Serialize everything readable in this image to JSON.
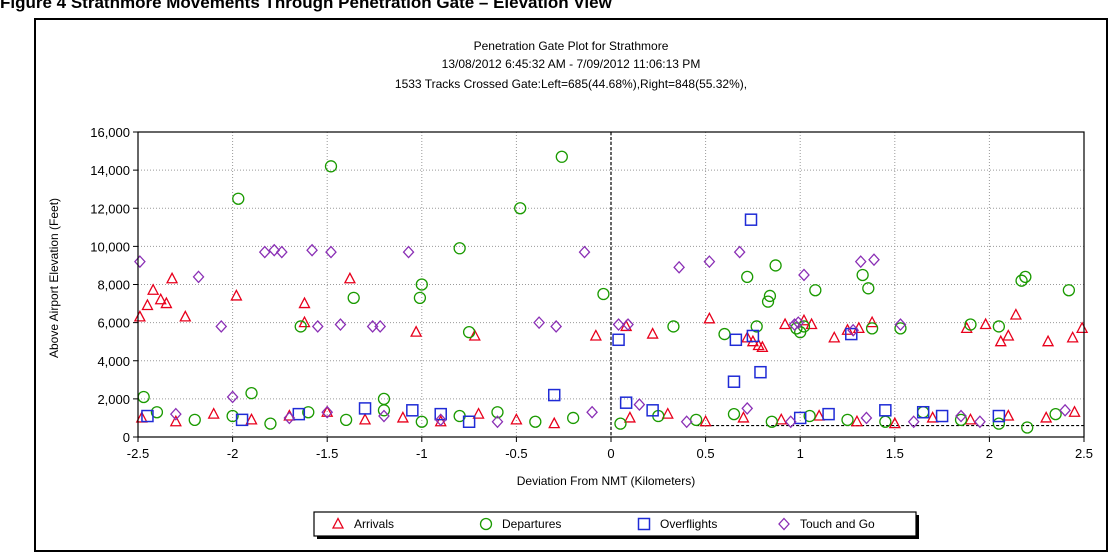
{
  "figure_caption": "Figure 4 Strathmore Movements Through Penetration Gate – Elevation View",
  "chart_data": {
    "type": "scatter",
    "title": "Penetration Gate Plot for Strathmore",
    "subtitle": "13/08/2012 6:45:32 AM - 7/09/2012 11:06:13 PM",
    "subtitle2": "1533 Tracks Crossed Gate:Left=685(44.68%),Right=848(55.32%),",
    "xlabel": "Deviation From NMT (Kilometers)",
    "ylabel": "Above Airport Elevation (Feet)",
    "xlim": [
      -2.5,
      2.5
    ],
    "ylim": [
      0,
      16000
    ],
    "xticks": [
      -2.5,
      -2,
      -1.5,
      -1,
      -0.5,
      0,
      0.5,
      1,
      1.5,
      2,
      2.5
    ],
    "xtick_labels": [
      "-2.5",
      "-2",
      "-1.5",
      "-1",
      "-0.5",
      "0",
      "0.5",
      "1",
      "1.5",
      "2",
      "2.5"
    ],
    "yticks": [
      0,
      2000,
      4000,
      6000,
      8000,
      10000,
      12000,
      14000,
      16000
    ],
    "ytick_labels": [
      "0",
      "2,000",
      "4,000",
      "6,000",
      "8,000",
      "10,000",
      "12,000",
      "14,000",
      "16,000"
    ],
    "grid": "dotted",
    "reference_lines": {
      "vertical_x": 0,
      "horizontal_y": 600
    },
    "legend_position": "bottom",
    "series": [
      {
        "name": "Arrivals",
        "marker": "triangle",
        "color": "#e8001c",
        "points": [
          [
            -2.49,
            6300
          ],
          [
            -2.45,
            6900
          ],
          [
            -2.42,
            7700
          ],
          [
            -2.38,
            7200
          ],
          [
            -2.35,
            7000
          ],
          [
            -2.32,
            8300
          ],
          [
            -2.25,
            6300
          ],
          [
            -1.98,
            7400
          ],
          [
            -1.62,
            7000
          ],
          [
            -1.62,
            6000
          ],
          [
            -1.38,
            8300
          ],
          [
            -1.03,
            5500
          ],
          [
            -0.72,
            5300
          ],
          [
            -0.08,
            5300
          ],
          [
            0.08,
            5800
          ],
          [
            0.22,
            5400
          ],
          [
            0.52,
            6200
          ],
          [
            0.72,
            5200
          ],
          [
            0.75,
            5000
          ],
          [
            0.78,
            4800
          ],
          [
            0.8,
            4700
          ],
          [
            0.92,
            5900
          ],
          [
            1.02,
            6100
          ],
          [
            1.06,
            5900
          ],
          [
            1.18,
            5200
          ],
          [
            1.25,
            5600
          ],
          [
            1.31,
            5700
          ],
          [
            1.38,
            6000
          ],
          [
            1.88,
            5700
          ],
          [
            1.98,
            5900
          ],
          [
            2.06,
            5000
          ],
          [
            2.1,
            5300
          ],
          [
            2.14,
            6400
          ],
          [
            2.31,
            5000
          ],
          [
            2.44,
            5200
          ],
          [
            2.49,
            5700
          ],
          [
            -2.48,
            1000
          ],
          [
            -2.3,
            800
          ],
          [
            -2.1,
            1200
          ],
          [
            -1.9,
            900
          ],
          [
            -1.7,
            1100
          ],
          [
            -1.5,
            1300
          ],
          [
            -1.3,
            900
          ],
          [
            -1.1,
            1000
          ],
          [
            -0.9,
            800
          ],
          [
            -0.7,
            1200
          ],
          [
            -0.5,
            900
          ],
          [
            -0.3,
            700
          ],
          [
            0.1,
            1000
          ],
          [
            0.3,
            1200
          ],
          [
            0.5,
            800
          ],
          [
            0.7,
            1000
          ],
          [
            0.9,
            900
          ],
          [
            1.1,
            1100
          ],
          [
            1.3,
            800
          ],
          [
            1.5,
            700
          ],
          [
            1.7,
            1000
          ],
          [
            1.9,
            900
          ],
          [
            2.1,
            1100
          ],
          [
            2.3,
            1000
          ],
          [
            2.45,
            1300
          ]
        ]
      },
      {
        "name": "Departures",
        "marker": "circle",
        "color": "#1a9a00",
        "points": [
          [
            -1.97,
            12500
          ],
          [
            -1.48,
            14200
          ],
          [
            -0.48,
            12000
          ],
          [
            -0.26,
            14700
          ],
          [
            -0.8,
            9900
          ],
          [
            -1.36,
            7300
          ],
          [
            -1.01,
            7300
          ],
          [
            -1.0,
            8000
          ],
          [
            -1.64,
            5800
          ],
          [
            -0.75,
            5500
          ],
          [
            -0.04,
            7500
          ],
          [
            0.33,
            5800
          ],
          [
            0.6,
            5400
          ],
          [
            0.72,
            8400
          ],
          [
            0.77,
            5800
          ],
          [
            0.83,
            7100
          ],
          [
            0.84,
            7400
          ],
          [
            0.87,
            9000
          ],
          [
            0.98,
            5700
          ],
          [
            1.0,
            5500
          ],
          [
            1.02,
            5800
          ],
          [
            1.08,
            7700
          ],
          [
            1.33,
            8500
          ],
          [
            1.36,
            7800
          ],
          [
            1.38,
            5700
          ],
          [
            1.53,
            5700
          ],
          [
            1.9,
            5900
          ],
          [
            2.05,
            5800
          ],
          [
            2.17,
            8200
          ],
          [
            2.19,
            8400
          ],
          [
            2.42,
            7700
          ],
          [
            -2.47,
            2100
          ],
          [
            -1.9,
            2300
          ],
          [
            -1.2,
            2000
          ],
          [
            -2.4,
            1300
          ],
          [
            -2.2,
            900
          ],
          [
            -2.0,
            1100
          ],
          [
            -1.8,
            700
          ],
          [
            -1.6,
            1300
          ],
          [
            -1.4,
            900
          ],
          [
            -1.2,
            1400
          ],
          [
            -1.0,
            800
          ],
          [
            -0.8,
            1100
          ],
          [
            -0.6,
            1300
          ],
          [
            -0.4,
            800
          ],
          [
            -0.2,
            1000
          ],
          [
            0.05,
            700
          ],
          [
            0.25,
            1100
          ],
          [
            0.45,
            900
          ],
          [
            0.65,
            1200
          ],
          [
            0.85,
            800
          ],
          [
            1.05,
            1100
          ],
          [
            1.25,
            900
          ],
          [
            1.45,
            800
          ],
          [
            1.65,
            1300
          ],
          [
            1.85,
            900
          ],
          [
            2.05,
            700
          ],
          [
            2.2,
            500
          ],
          [
            2.35,
            1200
          ]
        ]
      },
      {
        "name": "Overflights",
        "marker": "square",
        "color": "#1f2bd6",
        "points": [
          [
            0.74,
            11400
          ],
          [
            0.04,
            5100
          ],
          [
            0.66,
            5100
          ],
          [
            0.75,
            5300
          ],
          [
            1.27,
            5400
          ],
          [
            0.65,
            2900
          ],
          [
            0.79,
            3400
          ],
          [
            -0.3,
            2200
          ],
          [
            0.08,
            1800
          ],
          [
            0.22,
            1400
          ],
          [
            -2.45,
            1100
          ],
          [
            -1.95,
            900
          ],
          [
            -1.65,
            1200
          ],
          [
            -1.3,
            1500
          ],
          [
            -1.05,
            1400
          ],
          [
            -0.9,
            1200
          ],
          [
            -0.75,
            800
          ],
          [
            1.0,
            1000
          ],
          [
            1.15,
            1200
          ],
          [
            1.45,
            1400
          ],
          [
            1.65,
            1300
          ],
          [
            1.75,
            1100
          ],
          [
            2.05,
            1100
          ]
        ]
      },
      {
        "name": "Touch and Go",
        "marker": "diamond",
        "color": "#8a2fb5",
        "points": [
          [
            -2.49,
            9200
          ],
          [
            -2.18,
            8400
          ],
          [
            -2.06,
            5800
          ],
          [
            -1.83,
            9700
          ],
          [
            -1.78,
            9800
          ],
          [
            -1.74,
            9700
          ],
          [
            -1.58,
            9800
          ],
          [
            -1.55,
            5800
          ],
          [
            -1.48,
            9700
          ],
          [
            -1.43,
            5900
          ],
          [
            -1.26,
            5800
          ],
          [
            -1.22,
            5800
          ],
          [
            -1.07,
            9700
          ],
          [
            -0.38,
            6000
          ],
          [
            -0.29,
            5800
          ],
          [
            -0.14,
            9700
          ],
          [
            0.04,
            5900
          ],
          [
            0.09,
            5900
          ],
          [
            0.36,
            8900
          ],
          [
            0.52,
            9200
          ],
          [
            0.68,
            9700
          ],
          [
            0.97,
            5900
          ],
          [
            0.99,
            6000
          ],
          [
            1.02,
            8500
          ],
          [
            1.28,
            5600
          ],
          [
            1.32,
            9200
          ],
          [
            1.39,
            9300
          ],
          [
            1.53,
            5900
          ],
          [
            -2.0,
            2100
          ],
          [
            -2.3,
            1200
          ],
          [
            -1.7,
            1000
          ],
          [
            -1.5,
            1300
          ],
          [
            -1.2,
            1100
          ],
          [
            -0.9,
            900
          ],
          [
            -0.6,
            800
          ],
          [
            -0.1,
            1300
          ],
          [
            0.15,
            1700
          ],
          [
            0.4,
            800
          ],
          [
            0.72,
            1500
          ],
          [
            0.95,
            800
          ],
          [
            1.35,
            1000
          ],
          [
            1.6,
            800
          ],
          [
            1.85,
            1100
          ],
          [
            1.95,
            800
          ],
          [
            2.4,
            1400
          ]
        ]
      }
    ]
  }
}
